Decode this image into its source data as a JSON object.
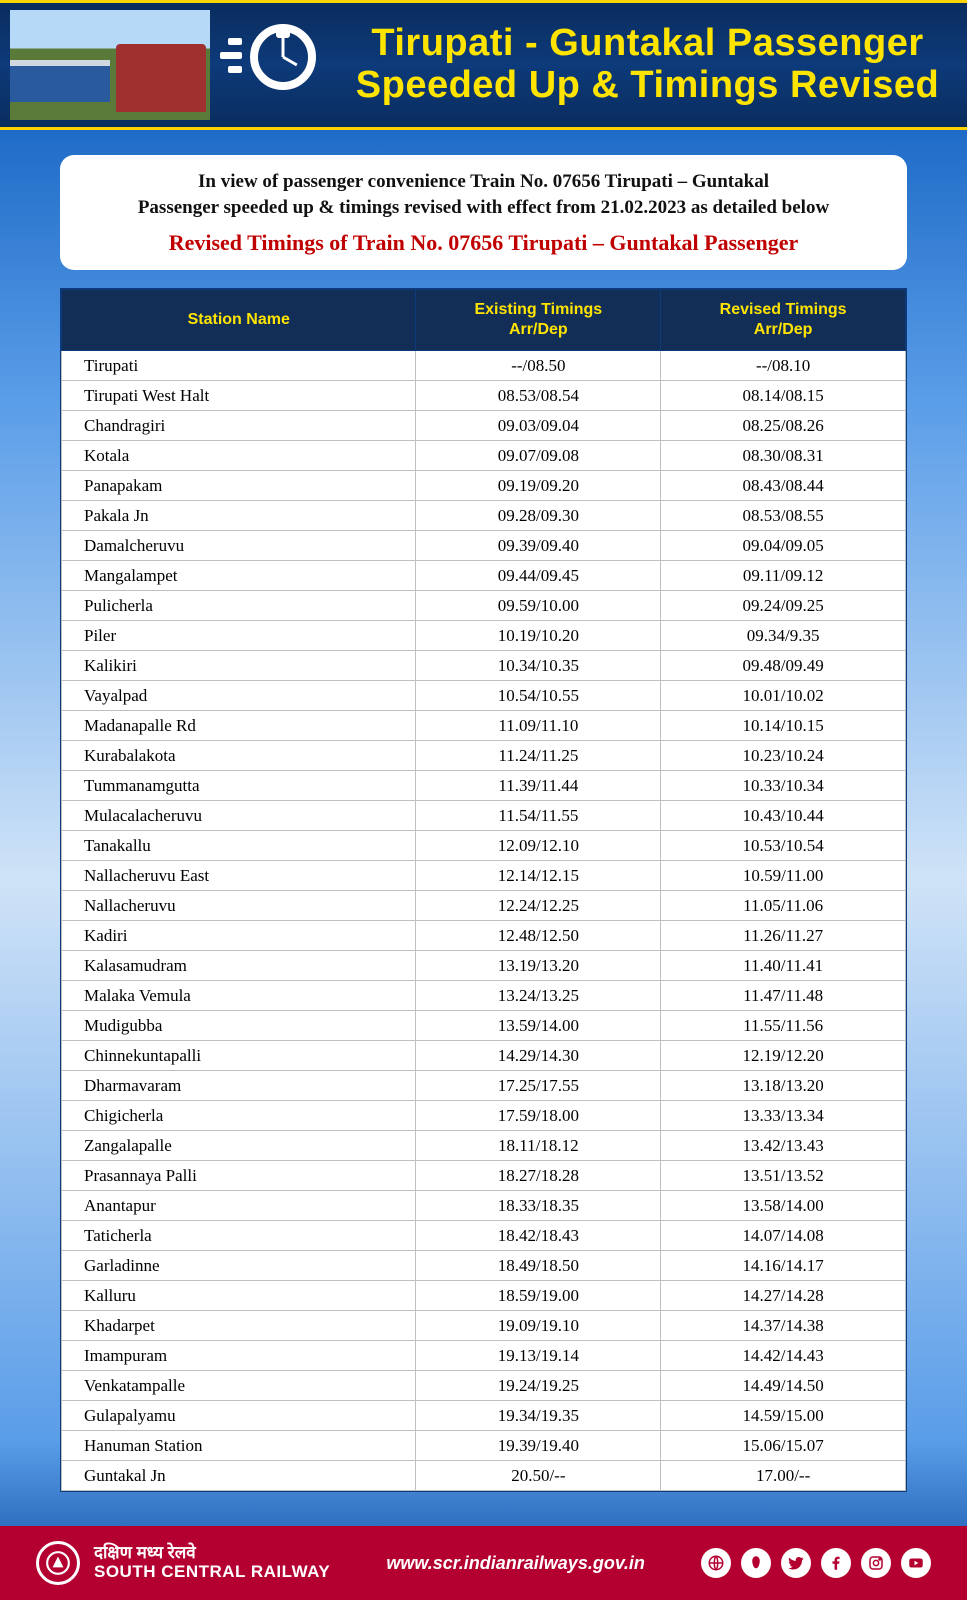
{
  "header": {
    "title_line1": "Tirupati - Guntakal Passenger",
    "title_line2": "Speeded Up & Timings Revised",
    "title_color": "#ffe400",
    "band_bg": "#0d3a7a",
    "accent_border": "#ffd400"
  },
  "intro": {
    "line1": "In view of passenger convenience Train No. 07656 Tirupati – Guntakal",
    "line2": "Passenger speeded up & timings revised with effect from 21.02.2023 as detailed below",
    "red_line": "Revised Timings of Train No. 07656 Tirupati – Guntakal Passenger",
    "red_color": "#c00000"
  },
  "table": {
    "header_bg": "#122e57",
    "header_text_color": "#ffe400",
    "columns": {
      "c1": "Station Name",
      "c2a": "Existing Timings",
      "c2b": "Arr/Dep",
      "c3a": "Revised Timings",
      "c3b": "Arr/Dep"
    },
    "col_widths": [
      "42%",
      "29%",
      "29%"
    ],
    "rows": [
      {
        "station": "Tirupati",
        "existing": "--/08.50",
        "revised": "--/08.10"
      },
      {
        "station": "Tirupati West Halt",
        "existing": "08.53/08.54",
        "revised": "08.14/08.15"
      },
      {
        "station": "Chandragiri",
        "existing": "09.03/09.04",
        "revised": "08.25/08.26"
      },
      {
        "station": "Kotala",
        "existing": "09.07/09.08",
        "revised": "08.30/08.31"
      },
      {
        "station": "Panapakam",
        "existing": "09.19/09.20",
        "revised": "08.43/08.44"
      },
      {
        "station": "Pakala Jn",
        "existing": "09.28/09.30",
        "revised": "08.53/08.55"
      },
      {
        "station": "Damalcheruvu",
        "existing": "09.39/09.40",
        "revised": "09.04/09.05"
      },
      {
        "station": "Mangalampet",
        "existing": "09.44/09.45",
        "revised": "09.11/09.12"
      },
      {
        "station": "Pulicherla",
        "existing": "09.59/10.00",
        "revised": "09.24/09.25"
      },
      {
        "station": "Piler",
        "existing": "10.19/10.20",
        "revised": "09.34/9.35"
      },
      {
        "station": "Kalikiri",
        "existing": "10.34/10.35",
        "revised": "09.48/09.49"
      },
      {
        "station": "Vayalpad",
        "existing": "10.54/10.55",
        "revised": "10.01/10.02"
      },
      {
        "station": "Madanapalle Rd",
        "existing": "11.09/11.10",
        "revised": "10.14/10.15"
      },
      {
        "station": "Kurabalakota",
        "existing": "11.24/11.25",
        "revised": "10.23/10.24"
      },
      {
        "station": "Tummanamgutta",
        "existing": "11.39/11.44",
        "revised": "10.33/10.34"
      },
      {
        "station": "Mulacalacheruvu",
        "existing": "11.54/11.55",
        "revised": "10.43/10.44"
      },
      {
        "station": "Tanakallu",
        "existing": "12.09/12.10",
        "revised": "10.53/10.54"
      },
      {
        "station": "Nallacheruvu East",
        "existing": "12.14/12.15",
        "revised": "10.59/11.00"
      },
      {
        "station": "Nallacheruvu",
        "existing": "12.24/12.25",
        "revised": "11.05/11.06"
      },
      {
        "station": "Kadiri",
        "existing": "12.48/12.50",
        "revised": "11.26/11.27"
      },
      {
        "station": "Kalasamudram",
        "existing": "13.19/13.20",
        "revised": "11.40/11.41"
      },
      {
        "station": "Malaka Vemula",
        "existing": "13.24/13.25",
        "revised": "11.47/11.48"
      },
      {
        "station": "Mudigubba",
        "existing": "13.59/14.00",
        "revised": "11.55/11.56"
      },
      {
        "station": "Chinnekuntapalli",
        "existing": "14.29/14.30",
        "revised": "12.19/12.20"
      },
      {
        "station": "Dharmavaram",
        "existing": "17.25/17.55",
        "revised": "13.18/13.20"
      },
      {
        "station": "Chigicherla",
        "existing": "17.59/18.00",
        "revised": "13.33/13.34"
      },
      {
        "station": "Zangalapalle",
        "existing": "18.11/18.12",
        "revised": "13.42/13.43"
      },
      {
        "station": "Prasannaya Palli",
        "existing": "18.27/18.28",
        "revised": "13.51/13.52"
      },
      {
        "station": "Anantapur",
        "existing": "18.33/18.35",
        "revised": "13.58/14.00"
      },
      {
        "station": "Taticherla",
        "existing": "18.42/18.43",
        "revised": "14.07/14.08"
      },
      {
        "station": "Garladinne",
        "existing": "18.49/18.50",
        "revised": "14.16/14.17"
      },
      {
        "station": "Kalluru",
        "existing": "18.59/19.00",
        "revised": "14.27/14.28"
      },
      {
        "station": "Khadarpet",
        "existing": "19.09/19.10",
        "revised": "14.37/14.38"
      },
      {
        "station": "Imampuram",
        "existing": "19.13/19.14",
        "revised": "14.42/14.43"
      },
      {
        "station": "Venkatampalle",
        "existing": "19.24/19.25",
        "revised": "14.49/14.50"
      },
      {
        "station": "Gulapalyamu",
        "existing": "19.34/19.35",
        "revised": "14.59/15.00"
      },
      {
        "station": "Hanuman Station",
        "existing": "19.39/19.40",
        "revised": "15.06/15.07"
      },
      {
        "station": "Guntakal Jn",
        "existing": "20.50/--",
        "revised": "17.00/--"
      }
    ]
  },
  "footer": {
    "bg": "#b40030",
    "org_hindi": "दक्षिण मध्य रेलवे",
    "org_english": "SOUTH CENTRAL RAILWAY",
    "url": "www.scr.indianrailways.gov.in",
    "social_icons": {
      "globe": "globe-icon",
      "drop": "koo-icon",
      "twitter": "twitter-icon",
      "facebook": "facebook-icon",
      "instagram": "instagram-icon",
      "youtube": "youtube-icon"
    }
  }
}
